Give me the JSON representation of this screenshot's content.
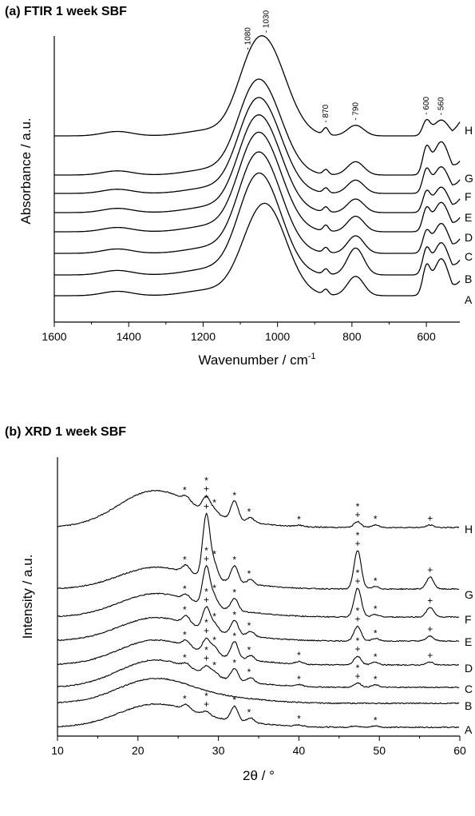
{
  "chart_data": [
    {
      "type": "line",
      "panel_title": "(a) FTIR 1 week SBF",
      "xlabel": "Wavenumber / cm",
      "xlabel_sup": "-1",
      "ylabel": "Absorbance / a.u.",
      "xlim": [
        1600,
        510
      ],
      "x_reversed": true,
      "x_ticks": [
        1600,
        1400,
        1200,
        1000,
        800,
        600
      ],
      "y_ticks_visible": false,
      "series": [
        {
          "name": "A",
          "peaks": [
            [
              1080,
              0.1
            ],
            [
              1030,
              1.0
            ],
            [
              870,
              0.06
            ],
            [
              790,
              0.22
            ],
            [
              600,
              0.3
            ],
            [
              560,
              0.42
            ]
          ]
        },
        {
          "name": "B",
          "peaks": [
            [
              1080,
              0.2
            ],
            [
              1040,
              1.0
            ],
            [
              870,
              0.06
            ],
            [
              790,
              0.3
            ],
            [
              600,
              0.26
            ],
            [
              560,
              0.36
            ]
          ]
        },
        {
          "name": "C",
          "peaks": [
            [
              1080,
              0.22
            ],
            [
              1040,
              1.0
            ],
            [
              870,
              0.06
            ],
            [
              790,
              0.2
            ],
            [
              600,
              0.22
            ],
            [
              560,
              0.34
            ]
          ]
        },
        {
          "name": "D",
          "peaks": [
            [
              1080,
              0.22
            ],
            [
              1040,
              1.0
            ],
            [
              870,
              0.07
            ],
            [
              790,
              0.18
            ],
            [
              600,
              0.24
            ],
            [
              560,
              0.34
            ]
          ]
        },
        {
          "name": "E",
          "peaks": [
            [
              1080,
              0.22
            ],
            [
              1040,
              1.0
            ],
            [
              870,
              0.06
            ],
            [
              790,
              0.16
            ],
            [
              600,
              0.22
            ],
            [
              560,
              0.3
            ]
          ]
        },
        {
          "name": "F",
          "peaks": [
            [
              1080,
              0.22
            ],
            [
              1040,
              1.0
            ],
            [
              870,
              0.06
            ],
            [
              790,
              0.16
            ],
            [
              600,
              0.26
            ],
            [
              560,
              0.32
            ]
          ]
        },
        {
          "name": "G",
          "peaks": [
            [
              1080,
              0.22
            ],
            [
              1040,
              1.0
            ],
            [
              870,
              0.06
            ],
            [
              790,
              0.16
            ],
            [
              600,
              0.3
            ],
            [
              560,
              0.4
            ]
          ]
        },
        {
          "name": "H",
          "peaks": [
            [
              1080,
              0.25
            ],
            [
              1030,
              1.0
            ],
            [
              870,
              0.08
            ],
            [
              790,
              0.12
            ],
            [
              600,
              0.16
            ],
            [
              560,
              0.18
            ]
          ]
        }
      ],
      "annotations": [
        "1080",
        "1030",
        "870",
        "790",
        "600",
        "560"
      ],
      "annotation_x": [
        1080,
        1030,
        870,
        790,
        600,
        560
      ]
    },
    {
      "type": "line",
      "panel_title": "(b) XRD 1 week SBF",
      "xlabel": "2θ / °",
      "ylabel": "Intensity / a.u.",
      "xlim": [
        10,
        60
      ],
      "x_ticks": [
        10,
        20,
        30,
        40,
        50,
        60
      ],
      "y_ticks_visible": false,
      "legend_markers": [
        "*",
        "+"
      ],
      "series": [
        {
          "name": "A",
          "amorphous_hump_at": 22,
          "peaks": [
            [
              26,
              0.1
            ],
            [
              28.5,
              0.08
            ],
            [
              32,
              0.3
            ],
            [
              34,
              0.1
            ],
            [
              40,
              0.03
            ],
            [
              47,
              0.03
            ],
            [
              49.5,
              0.03
            ]
          ]
        },
        {
          "name": "B",
          "amorphous_hump_at": 22,
          "peaks": []
        },
        {
          "name": "C",
          "amorphous_hump_at": 22,
          "peaks": [
            [
              26,
              0.08
            ],
            [
              28.5,
              0.16
            ],
            [
              29.5,
              0.1
            ],
            [
              32,
              0.25
            ],
            [
              34,
              0.1
            ],
            [
              40,
              0.04
            ],
            [
              47.3,
              0.09
            ],
            [
              49.5,
              0.05
            ]
          ]
        },
        {
          "name": "D",
          "amorphous_hump_at": 22,
          "peaks": [
            [
              26,
              0.12
            ],
            [
              28.5,
              0.28
            ],
            [
              29.5,
              0.15
            ],
            [
              32,
              0.35
            ],
            [
              34,
              0.1
            ],
            [
              40,
              0.05
            ],
            [
              47.3,
              0.18
            ],
            [
              49.5,
              0.06
            ],
            [
              56.3,
              0.06
            ]
          ]
        },
        {
          "name": "E",
          "amorphous_hump_at": 22,
          "peaks": [
            [
              26,
              0.15
            ],
            [
              28.5,
              0.45
            ],
            [
              29.5,
              0.15
            ],
            [
              32,
              0.3
            ],
            [
              34,
              0.1
            ],
            [
              47.3,
              0.3
            ],
            [
              49.5,
              0.05
            ],
            [
              56.3,
              0.1
            ]
          ]
        },
        {
          "name": "F",
          "amorphous_hump_at": 22,
          "peaks": [
            [
              26,
              0.1
            ],
            [
              28.5,
              0.8
            ],
            [
              29.5,
              0.2
            ],
            [
              32,
              0.25
            ],
            [
              47.3,
              0.6
            ],
            [
              49.5,
              0.05
            ],
            [
              56.3,
              0.2
            ]
          ]
        },
        {
          "name": "G",
          "amorphous_hump_at": 22,
          "peaks": [
            [
              26,
              0.15
            ],
            [
              28.5,
              1.3
            ],
            [
              29.5,
              0.3
            ],
            [
              32,
              0.35
            ],
            [
              34,
              0.1
            ],
            [
              47.3,
              0.8
            ],
            [
              49.5,
              0.05
            ],
            [
              56.3,
              0.25
            ]
          ]
        },
        {
          "name": "H",
          "amorphous_hump_at": 22,
          "peaks": [
            [
              26,
              0.1
            ],
            [
              28.5,
              0.3
            ],
            [
              29.5,
              0.1
            ],
            [
              32,
              0.4
            ],
            [
              34,
              0.1
            ],
            [
              40,
              0.03
            ],
            [
              47.3,
              0.12
            ],
            [
              49.5,
              0.05
            ],
            [
              56.3,
              0.05
            ]
          ]
        }
      ]
    }
  ]
}
